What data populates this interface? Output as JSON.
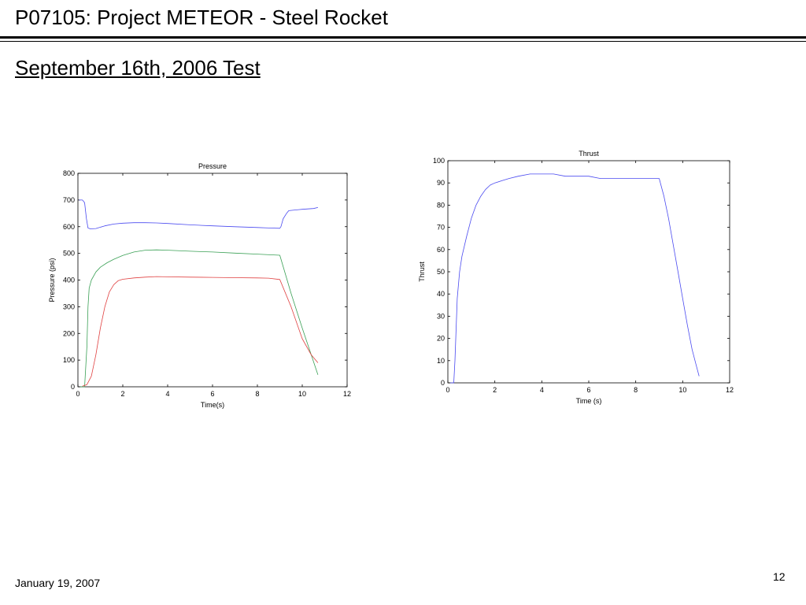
{
  "slide": {
    "title": "P07105: Project METEOR - Steel Rocket",
    "subtitle": "September 16th, 2006 Test",
    "footer_date": "January 19, 2007",
    "page_number": "12"
  },
  "chart_data": [
    {
      "type": "line",
      "title": "Pressure",
      "xlabel": "Time(s)",
      "ylabel": "Pressure (psi)",
      "xlim": [
        0,
        12
      ],
      "ylim": [
        0,
        800
      ],
      "xticks": [
        0,
        2,
        4,
        6,
        8,
        10,
        12
      ],
      "yticks": [
        0,
        100,
        200,
        300,
        400,
        500,
        600,
        700,
        800
      ],
      "grid": false,
      "series": [
        {
          "color": "#4a4af0",
          "x": [
            0.05,
            0.2,
            0.3,
            0.38,
            0.45,
            0.55,
            0.8,
            1.2,
            1.6,
            2.0,
            2.5,
            3.0,
            3.5,
            4.0,
            5.0,
            6.0,
            7.0,
            8.0,
            8.5,
            9.0,
            9.05,
            9.15,
            9.3,
            9.4,
            10.0,
            10.5,
            10.7
          ],
          "y": [
            700,
            700,
            690,
            630,
            595,
            592,
            593,
            603,
            610,
            613,
            615,
            615,
            614,
            612,
            607,
            603,
            600,
            597,
            595,
            594,
            600,
            630,
            650,
            660,
            665,
            668,
            672
          ]
        },
        {
          "color": "#3aa055",
          "x": [
            0.1,
            0.3,
            0.4,
            0.45,
            0.5,
            0.6,
            0.8,
            1.0,
            1.3,
            1.6,
            2.0,
            2.5,
            3.0,
            3.5,
            4.0,
            5.0,
            6.0,
            7.0,
            8.0,
            9.0,
            9.5,
            10.0,
            10.4,
            10.7
          ],
          "y": [
            0,
            0,
            150,
            300,
            370,
            400,
            430,
            448,
            465,
            478,
            492,
            505,
            512,
            513,
            512,
            508,
            505,
            501,
            497,
            493,
            350,
            220,
            120,
            45
          ]
        },
        {
          "color": "#e04040",
          "x": [
            0.2,
            0.4,
            0.6,
            0.8,
            1.0,
            1.2,
            1.4,
            1.6,
            1.8,
            2.0,
            2.5,
            3.0,
            3.5,
            4.0,
            5.0,
            6.0,
            7.0,
            8.0,
            8.5,
            9.0,
            9.5,
            10.0,
            10.4,
            10.7
          ],
          "y": [
            2,
            8,
            40,
            120,
            220,
            300,
            355,
            383,
            398,
            403,
            408,
            411,
            413,
            412,
            411,
            410,
            409,
            408,
            407,
            402,
            300,
            180,
            120,
            90
          ]
        }
      ]
    },
    {
      "type": "line",
      "title": "Thrust",
      "xlabel": "Time (s)",
      "ylabel": "Thrust",
      "xlim": [
        0,
        12
      ],
      "ylim": [
        0,
        100
      ],
      "xticks": [
        0,
        2,
        4,
        6,
        8,
        10,
        12
      ],
      "yticks": [
        0,
        10,
        20,
        30,
        40,
        50,
        60,
        70,
        80,
        90,
        100
      ],
      "grid": false,
      "series": [
        {
          "color": "#4a4af0",
          "x": [
            0.1,
            0.25,
            0.3,
            0.4,
            0.5,
            0.6,
            0.8,
            1.0,
            1.2,
            1.4,
            1.6,
            1.8,
            2.0,
            2.3,
            2.6,
            3.0,
            3.5,
            4.0,
            4.5,
            5.0,
            5.5,
            6.0,
            6.5,
            7.0,
            7.5,
            8.0,
            8.5,
            9.0,
            9.2,
            9.4,
            9.6,
            9.8,
            10.0,
            10.2,
            10.4,
            10.6,
            10.7
          ],
          "y": [
            0,
            0,
            10,
            38,
            50,
            57,
            66,
            74,
            80,
            84,
            87,
            89,
            90,
            91,
            92,
            93,
            94,
            94,
            94,
            93,
            93,
            93,
            92,
            92,
            92,
            92,
            92,
            92,
            84,
            74,
            62,
            50,
            38,
            26,
            15,
            7,
            3
          ]
        }
      ]
    }
  ]
}
